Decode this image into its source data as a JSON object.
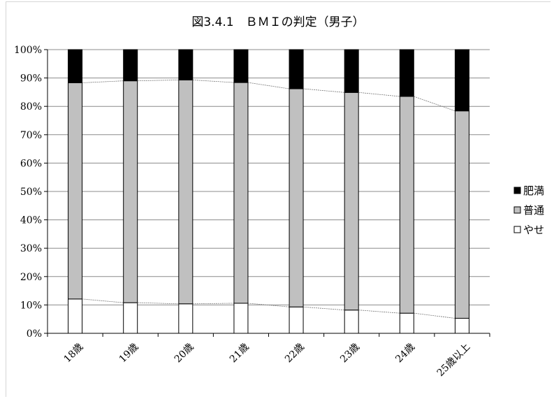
{
  "chart_data": {
    "type": "bar",
    "stacked": true,
    "percent": true,
    "title": "図3.4.1　ＢＭＩの判定（男子）",
    "categories": [
      "18歳",
      "19歳",
      "20歳",
      "21歳",
      "22歳",
      "23歳",
      "24歳",
      "25歳以上"
    ],
    "yticks": [
      "0%",
      "10%",
      "20%",
      "30%",
      "40%",
      "50%",
      "60%",
      "70%",
      "80%",
      "90%",
      "100%"
    ],
    "ylim": [
      0,
      100
    ],
    "grid": true,
    "legend_position": "right",
    "series_lines": true,
    "series": [
      {
        "name": "やせ",
        "color": "#ffffff",
        "values": [
          12.1,
          10.8,
          10.4,
          10.6,
          9.3,
          8.2,
          7.1,
          5.3
        ]
      },
      {
        "name": "普通",
        "color": "#c0c0c0",
        "values": [
          76.2,
          78.2,
          78.9,
          77.8,
          76.9,
          76.7,
          76.4,
          73.1
        ]
      },
      {
        "name": "肥満",
        "color": "#000000",
        "values": [
          11.7,
          11.0,
          10.7,
          11.6,
          13.8,
          15.1,
          16.5,
          21.6
        ]
      }
    ],
    "legend": [
      "肥満",
      "普通",
      "やせ"
    ]
  }
}
